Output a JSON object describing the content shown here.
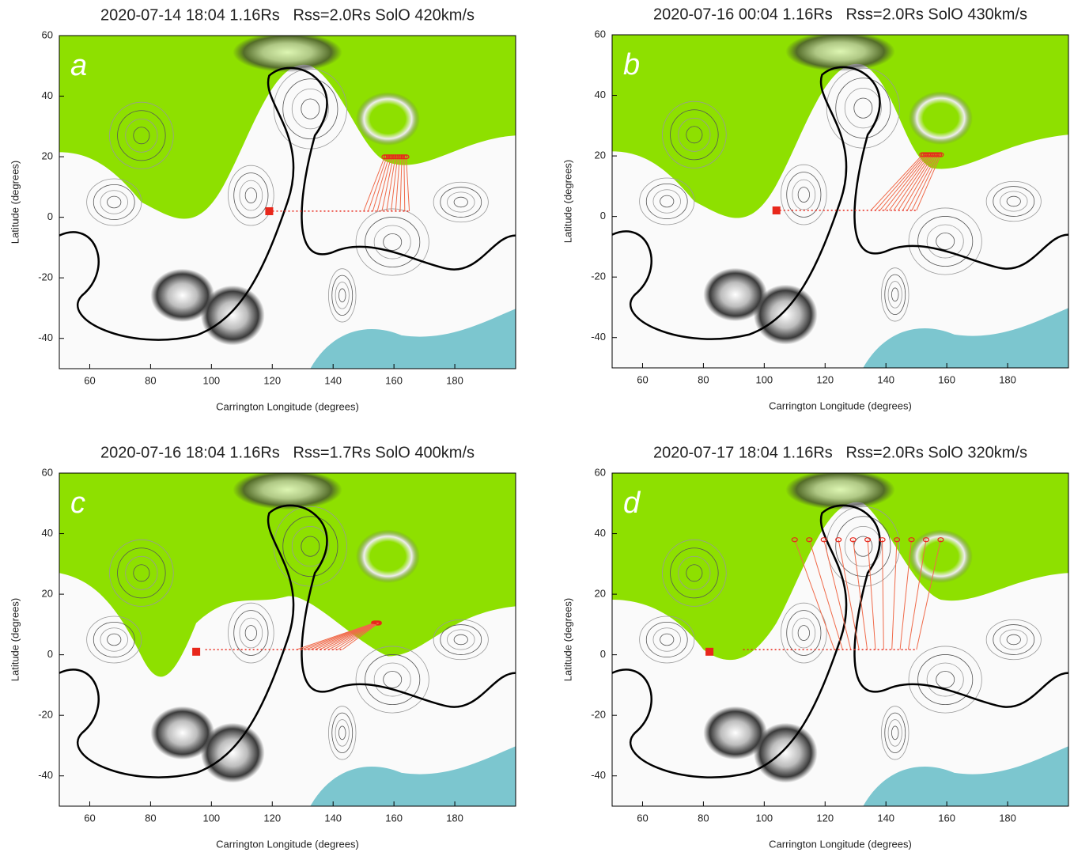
{
  "chart_data": [
    {
      "type": "scatter",
      "title": "2020-07-14 18:04 1.16Rs   Rss=2.0Rs SolO 420km/s",
      "panel_label": "a",
      "xlabel": "Carrington Longitude (degrees)",
      "ylabel": "Latitude (degrees)",
      "xlim": [
        50,
        200
      ],
      "ylim": [
        -50,
        60
      ],
      "xticks": [
        60,
        80,
        100,
        120,
        140,
        160,
        180
      ],
      "yticks": [
        -40,
        -20,
        0,
        20,
        40,
        60
      ],
      "x": [
        119
      ],
      "y": [
        2
      ],
      "color": "#e8271b"
    },
    {
      "type": "scatter",
      "title": "2020-07-16 00:04 1.16Rs   Rss=2.0Rs SolO 430km/s",
      "panel_label": "b",
      "xlabel": "Carrington Longitude (degrees)",
      "ylabel": "Latitude (degrees)",
      "xlim": [
        50,
        200
      ],
      "ylim": [
        -50,
        60
      ],
      "xticks": [
        60,
        80,
        100,
        120,
        140,
        160,
        180
      ],
      "yticks": [
        -40,
        -20,
        0,
        20,
        40,
        60
      ],
      "x": [
        104
      ],
      "y": [
        2
      ],
      "color": "#e8271b"
    },
    {
      "type": "scatter",
      "title": "2020-07-16 18:04 1.16Rs   Rss=1.7Rs SolO 400km/s",
      "panel_label": "c",
      "xlabel": "Carrington Longitude (degrees)",
      "ylabel": "Latitude (degrees)",
      "xlim": [
        50,
        200
      ],
      "ylim": [
        -50,
        60
      ],
      "xticks": [
        60,
        80,
        100,
        120,
        140,
        160,
        180
      ],
      "yticks": [
        -40,
        -20,
        0,
        20,
        40,
        60
      ],
      "x": [
        95
      ],
      "y": [
        1
      ],
      "color": "#e8271b"
    },
    {
      "type": "scatter",
      "title": "2020-07-17 18:04 1.16Rs   Rss=2.0Rs SolO 320km/s",
      "panel_label": "d",
      "xlabel": "Carrington Longitude (degrees)",
      "ylabel": "Latitude (degrees)",
      "xlim": [
        50,
        200
      ],
      "ylim": [
        -50,
        60
      ],
      "xticks": [
        60,
        80,
        100,
        120,
        140,
        160,
        180
      ],
      "yticks": [
        -40,
        -20,
        0,
        20,
        40,
        60
      ],
      "x": [
        82
      ],
      "y": [
        1
      ],
      "color": "#e8271b"
    }
  ]
}
